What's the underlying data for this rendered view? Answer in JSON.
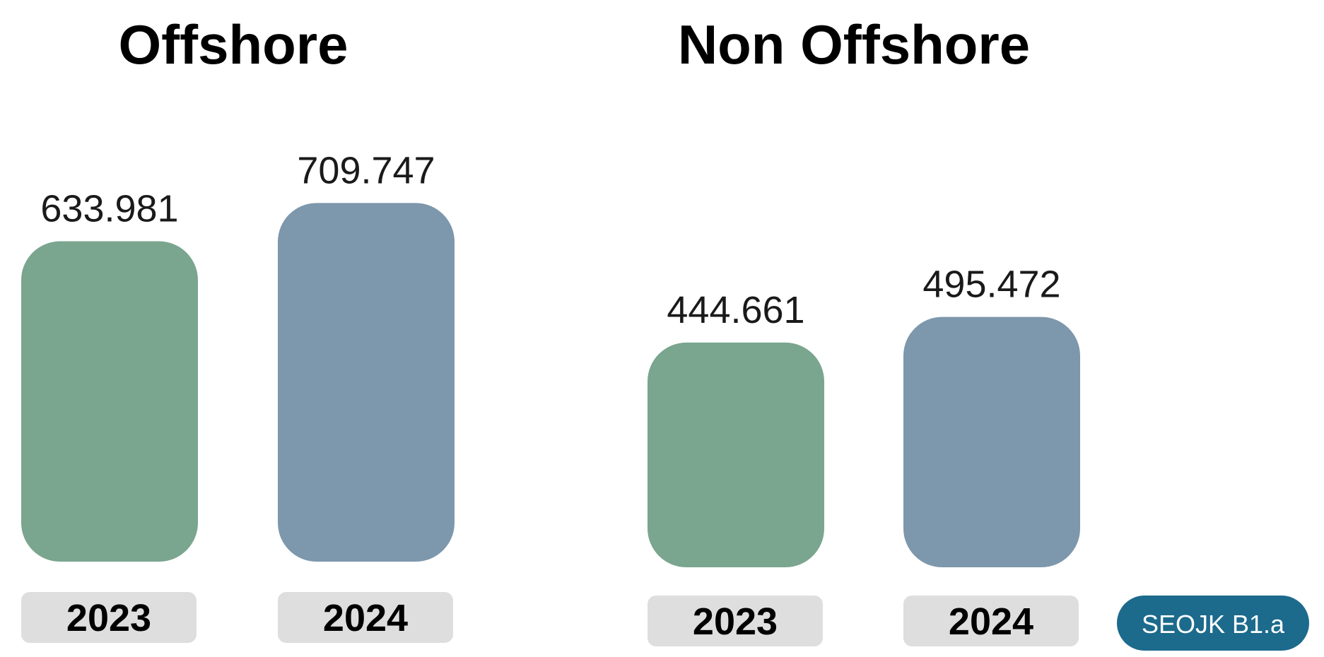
{
  "chart_data": [
    {
      "type": "bar",
      "title": "Offshore",
      "categories": [
        "2023",
        "2024"
      ],
      "values": [
        633.981,
        709.747
      ],
      "value_labels": [
        "633.981",
        "709.747"
      ],
      "colors": [
        "#7aa58e",
        "#7d97ac"
      ]
    },
    {
      "type": "bar",
      "title": "Non Offshore",
      "categories": [
        "2023",
        "2024"
      ],
      "values": [
        444.661,
        495.472
      ],
      "value_labels": [
        "444.661",
        "495.472"
      ],
      "colors": [
        "#7aa58e",
        "#7d97ac"
      ]
    }
  ],
  "badge": {
    "label": "SEOJK B1.a",
    "color": "#1c6a8c"
  },
  "colors": {
    "category_pill": "#dedede"
  }
}
